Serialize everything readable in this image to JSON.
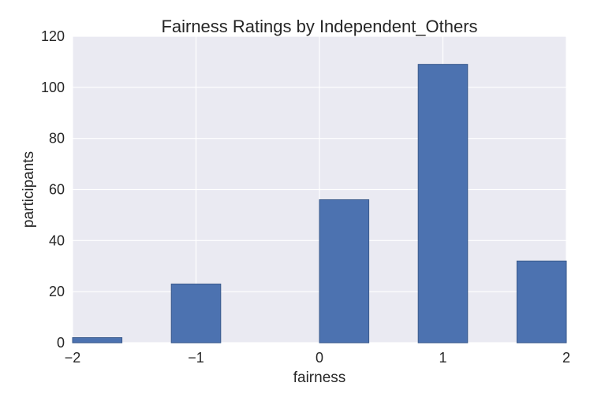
{
  "chart_data": {
    "type": "bar",
    "title": "Fairness Ratings by Independent_Others",
    "xlabel": "fairness",
    "ylabel": "participants",
    "xlim": [
      -2,
      2
    ],
    "ylim": [
      0,
      120
    ],
    "xticks": [
      -2,
      -1,
      0,
      1,
      2
    ],
    "xtick_labels": [
      "−2",
      "−1",
      "0",
      "1",
      "2"
    ],
    "yticks": [
      0,
      20,
      40,
      60,
      80,
      100,
      120
    ],
    "ytick_labels": [
      "0",
      "20",
      "40",
      "60",
      "80",
      "100",
      "120"
    ],
    "bins": [
      {
        "x0": -2.0,
        "x1": -1.6,
        "value": 2
      },
      {
        "x0": -1.2,
        "x1": -0.8,
        "value": 23
      },
      {
        "x0": 0.0,
        "x1": 0.4,
        "value": 56
      },
      {
        "x0": 0.8,
        "x1": 1.2,
        "value": 109
      },
      {
        "x0": 1.6,
        "x1": 2.0,
        "value": 32
      }
    ],
    "grid": true,
    "colors": {
      "bar": "#4c72b0",
      "bar_edge": "#3a5a8c",
      "plot_background": "#eaeaf2",
      "grid": "#ffffff"
    }
  }
}
